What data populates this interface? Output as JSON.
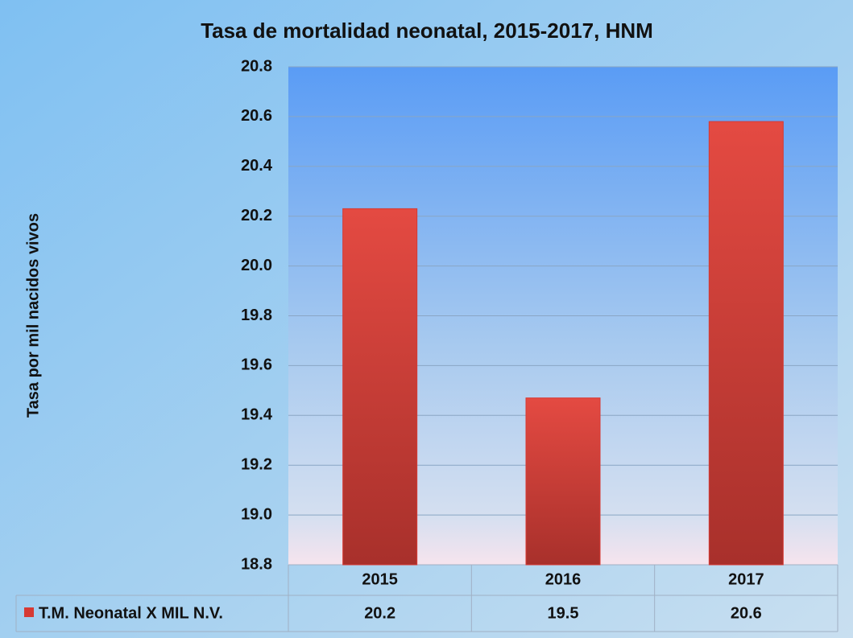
{
  "chart_data": {
    "type": "bar",
    "title": "Tasa de mortalidad  neonatal, 2015-2017, HNM",
    "y_label": "Tasa por mil nacidos vivos",
    "categories": [
      "2015",
      "2016",
      "2017"
    ],
    "series": [
      {
        "name": "T.M. Neonatal X MIL N.V.",
        "color": "#d63a34",
        "values": [
          20.23,
          19.47,
          20.58
        ],
        "value_labels": [
          "20.2",
          "19.5",
          "20.6"
        ]
      }
    ],
    "ylim": [
      18.8,
      20.8
    ],
    "yticks": [
      18.8,
      {
        "value": 19,
        "label": "19.0"
      },
      19.2,
      19.4,
      19.6,
      19.8,
      {
        "value": 20,
        "label": "20.0"
      },
      20.2,
      20.4,
      20.6,
      20.8
    ],
    "grid": true,
    "data_table": true
  }
}
